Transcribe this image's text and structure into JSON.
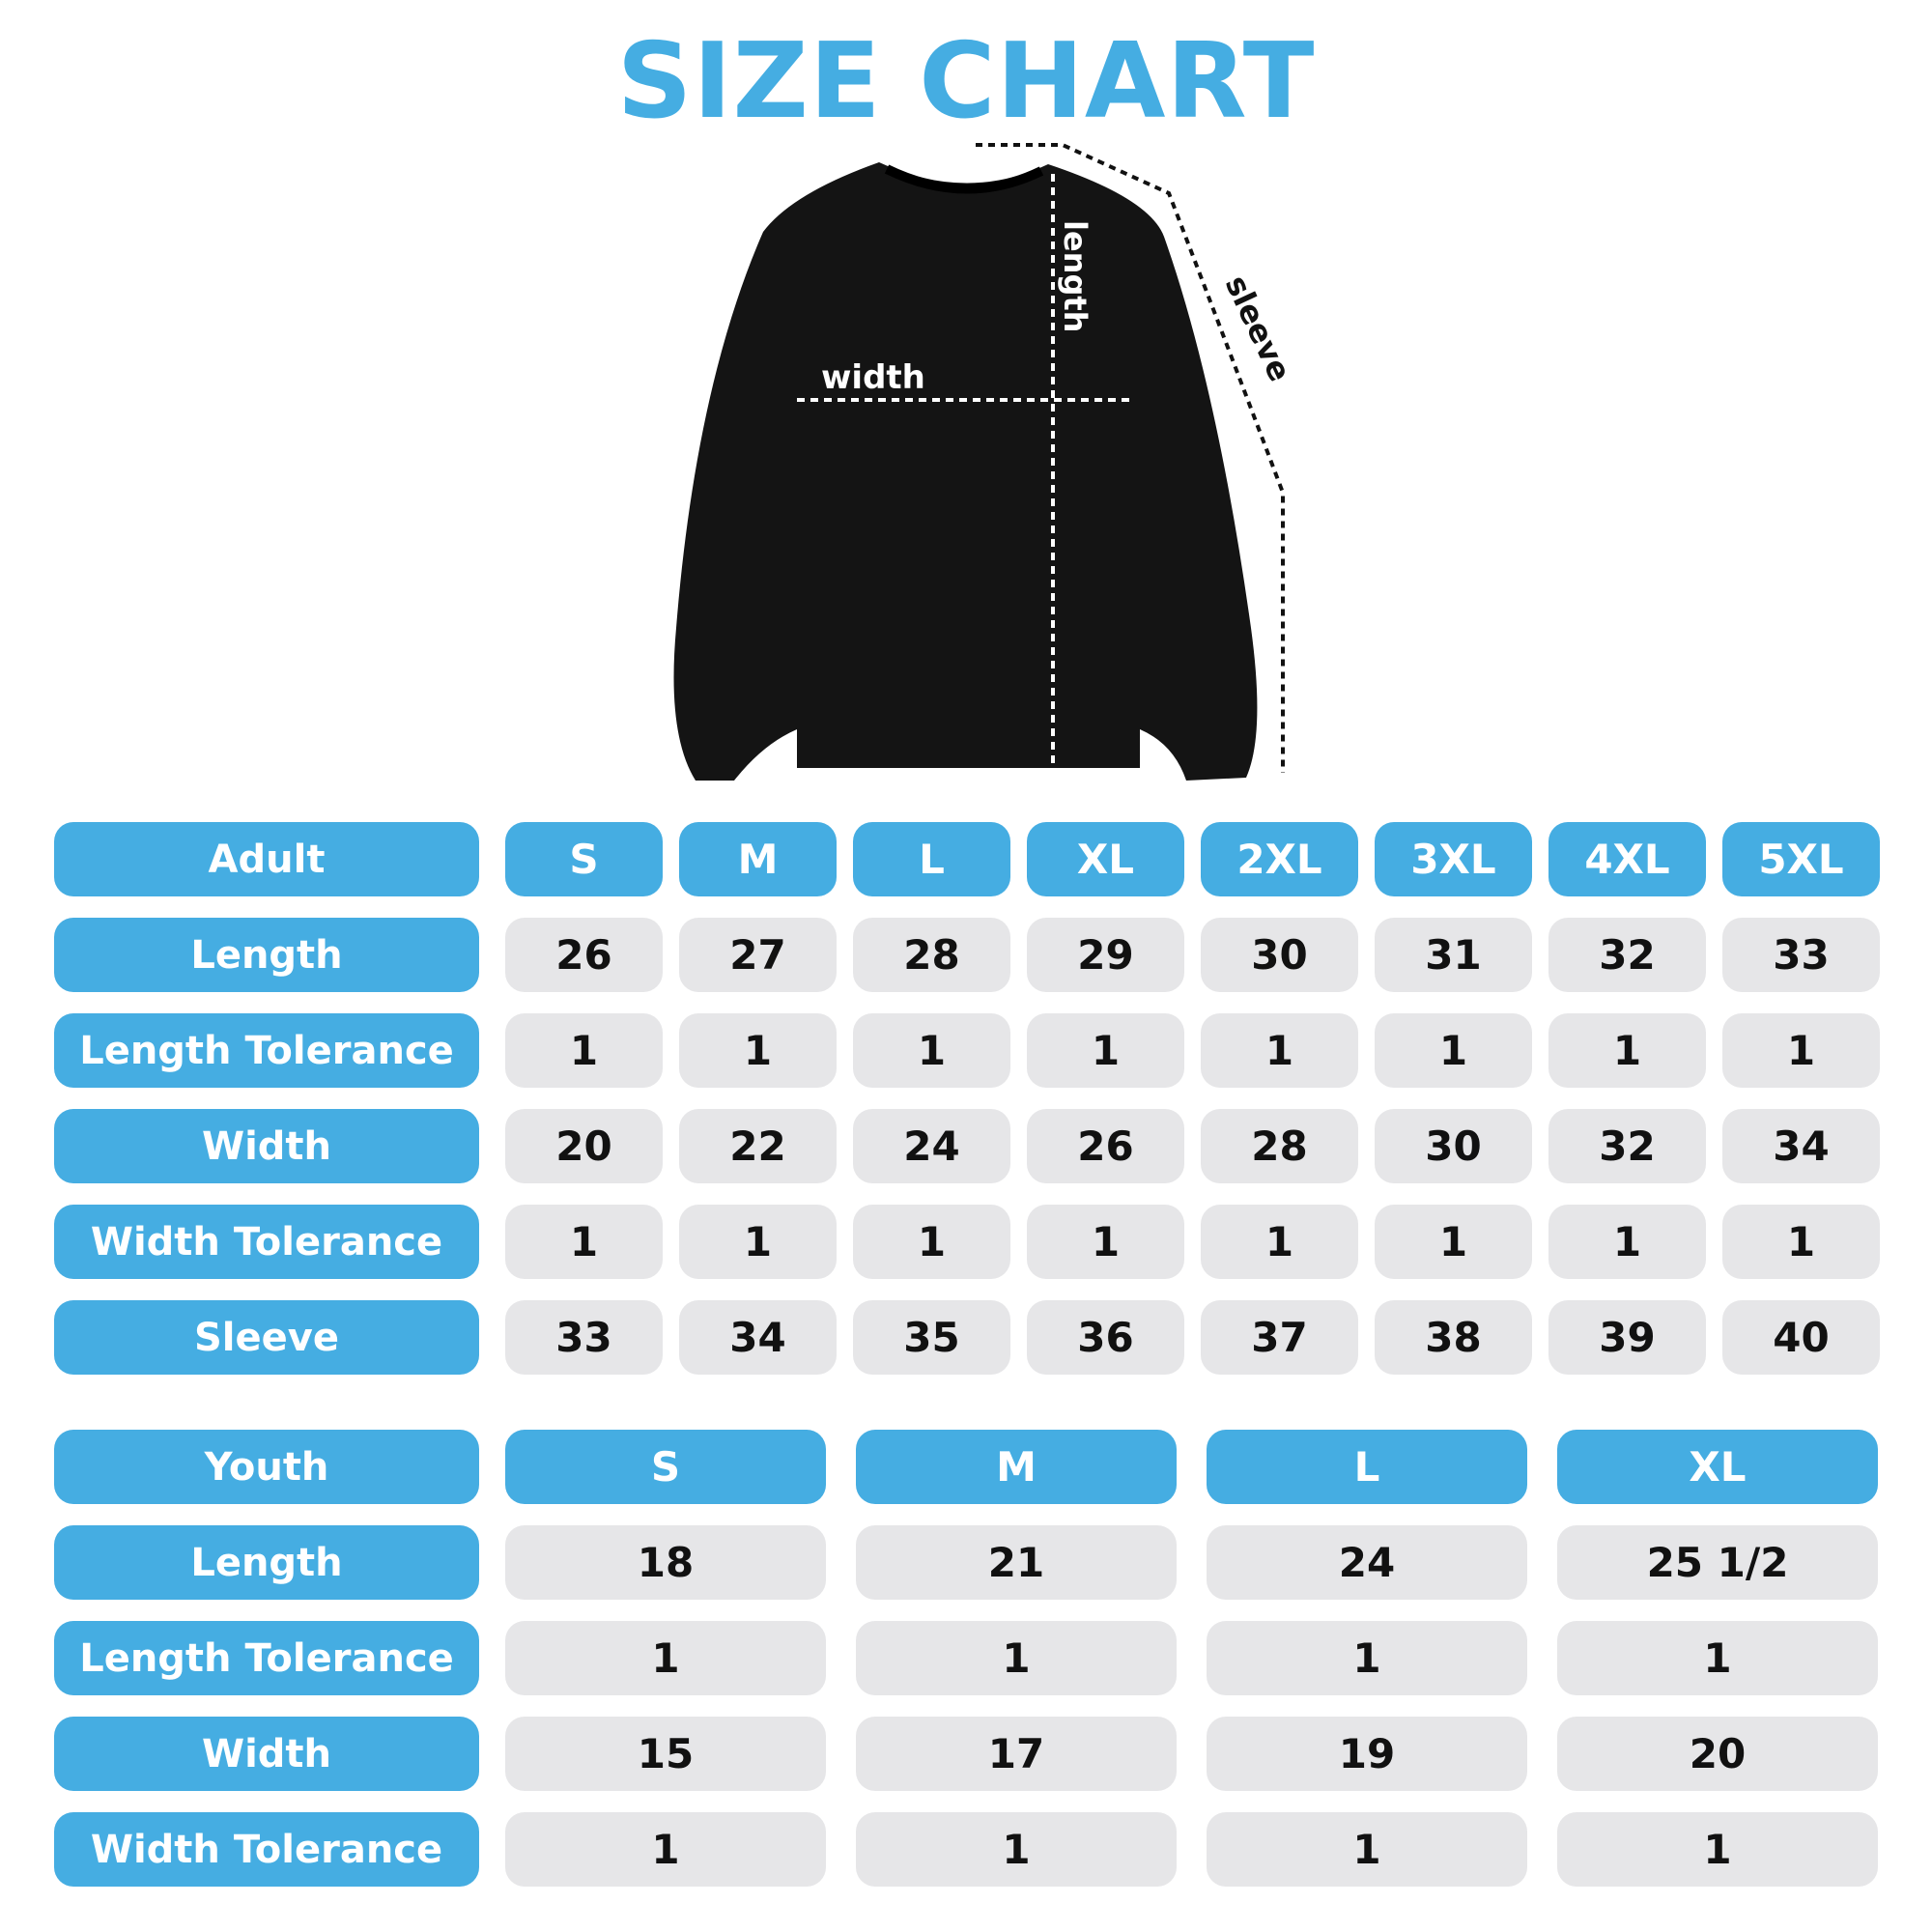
{
  "title": "SIZE CHART",
  "diagram": {
    "length_label": "length",
    "width_label": "width",
    "sleeve_label": "sleeve"
  },
  "colors": {
    "accent": "#45ade2",
    "cell": "#e6e6e8",
    "text": "#111111"
  },
  "adult": {
    "header": "Adult",
    "sizes": [
      "S",
      "M",
      "L",
      "XL",
      "2XL",
      "3XL",
      "4XL",
      "5XL"
    ],
    "rows": [
      {
        "label": "Length",
        "values": [
          "26",
          "27",
          "28",
          "29",
          "30",
          "31",
          "32",
          "33"
        ]
      },
      {
        "label": "Length Tolerance",
        "values": [
          "1",
          "1",
          "1",
          "1",
          "1",
          "1",
          "1",
          "1"
        ]
      },
      {
        "label": "Width",
        "values": [
          "20",
          "22",
          "24",
          "26",
          "28",
          "30",
          "32",
          "34"
        ]
      },
      {
        "label": "Width Tolerance",
        "values": [
          "1",
          "1",
          "1",
          "1",
          "1",
          "1",
          "1",
          "1"
        ]
      },
      {
        "label": "Sleeve",
        "values": [
          "33",
          "34",
          "35",
          "36",
          "37",
          "38",
          "39",
          "40"
        ]
      }
    ]
  },
  "youth": {
    "header": "Youth",
    "sizes": [
      "S",
      "M",
      "L",
      "XL"
    ],
    "rows": [
      {
        "label": "Length",
        "values": [
          "18",
          "21",
          "24",
          "25 1/2"
        ]
      },
      {
        "label": "Length Tolerance",
        "values": [
          "1",
          "1",
          "1",
          "1"
        ]
      },
      {
        "label": "Width",
        "values": [
          "15",
          "17",
          "19",
          "20"
        ]
      },
      {
        "label": "Width Tolerance",
        "values": [
          "1",
          "1",
          "1",
          "1"
        ]
      }
    ]
  }
}
